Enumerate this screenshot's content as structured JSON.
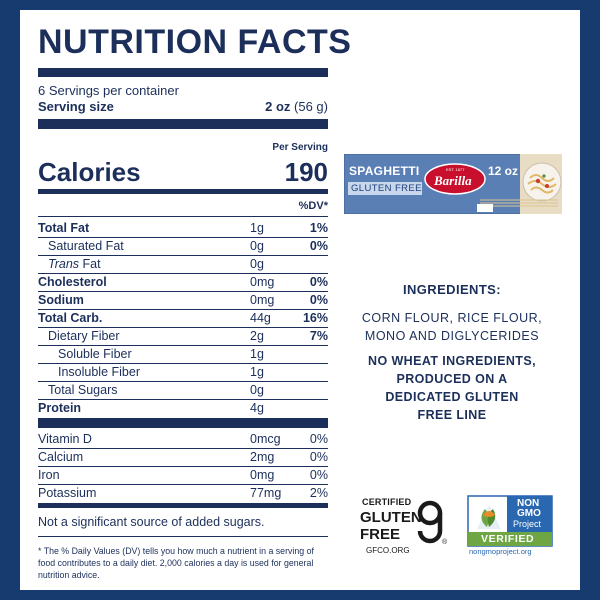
{
  "label": {
    "title": "NUTRITION FACTS",
    "servings": "6 Servings per container",
    "serving_size_label": "Serving size",
    "serving_size_value": "2 oz",
    "serving_size_gram": "(56 g)",
    "per_serving": "Per Serving",
    "calories_label": "Calories",
    "calories_value": "190",
    "dv_header": "%DV*",
    "nutrients": [
      {
        "name": "Total Fat",
        "amount": "1g",
        "dv": "1%"
      },
      {
        "name": "Saturated Fat",
        "amount": "0g",
        "dv": "0%"
      },
      {
        "name_italic": "Trans",
        "name_rest": " Fat",
        "amount": "0g",
        "dv": ""
      },
      {
        "name": "Cholesterol",
        "amount": "0mg",
        "dv": "0%"
      },
      {
        "name": "Sodium",
        "amount": "0mg",
        "dv": "0%"
      },
      {
        "name": "Total Carb.",
        "amount": "44g",
        "dv": "16%"
      },
      {
        "name": "Dietary Fiber",
        "amount": "2g",
        "dv": "7%"
      },
      {
        "name": "Soluble Fiber",
        "amount": "1g",
        "dv": ""
      },
      {
        "name": "Insoluble Fiber",
        "amount": "1g",
        "dv": ""
      },
      {
        "name": "Total Sugars",
        "amount": "0g",
        "dv": ""
      },
      {
        "name": "Protein",
        "amount": "4g",
        "dv": ""
      }
    ],
    "vitamins": [
      {
        "name": "Vitamin D",
        "amount": "0mcg",
        "dv": "0%"
      },
      {
        "name": "Calcium",
        "amount": "2mg",
        "dv": "0%"
      },
      {
        "name": "Iron",
        "amount": "0mg",
        "dv": "0%"
      },
      {
        "name": "Potassium",
        "amount": "77mg",
        "dv": "2%"
      }
    ],
    "not_significant": "Not a significant source of added sugars.",
    "footnote": "* The % Daily Values (DV) tells you how much a nutrient in a serving of food contributes to a daily diet. 2,000 calories a day is used for general nutrition advice."
  },
  "product_box": {
    "name": "SPAGHETTI",
    "badge": "GLUTEN FREE",
    "brand": "Barilla",
    "brand_small": "EST. 1877",
    "weight": "12 oz"
  },
  "ingredients": {
    "title": "INGREDIENTS:",
    "list_lines": [
      "CORN FLOUR, RICE FLOUR,",
      "MONO AND DIGLYCERIDES"
    ],
    "note_lines": [
      "NO WHEAT INGREDIENTS,",
      "PRODUCED ON A",
      "DEDICATED GLUTEN",
      "FREE LINE"
    ]
  },
  "certifications": {
    "gf_top": "CERTIFIED",
    "gf_mid1": "GLUTEN",
    "gf_mid2": "FREE",
    "gf_site": "GFCO.ORG",
    "gf_reg": "®",
    "ng_non": "NON",
    "ng_gmo": "GMO",
    "ng_project": "Project",
    "ng_verified": "VERIFIED",
    "ng_site": "nongmoproject.org"
  },
  "colors": {
    "navy": "#1c2f5a",
    "background": "#173a6f",
    "box_blue": "#5a7fb5",
    "barilla_red": "#c8102e",
    "nongmo_blue": "#2a67b1",
    "nongmo_green": "#6ea644",
    "nongmo_orange": "#e98b2a"
  }
}
